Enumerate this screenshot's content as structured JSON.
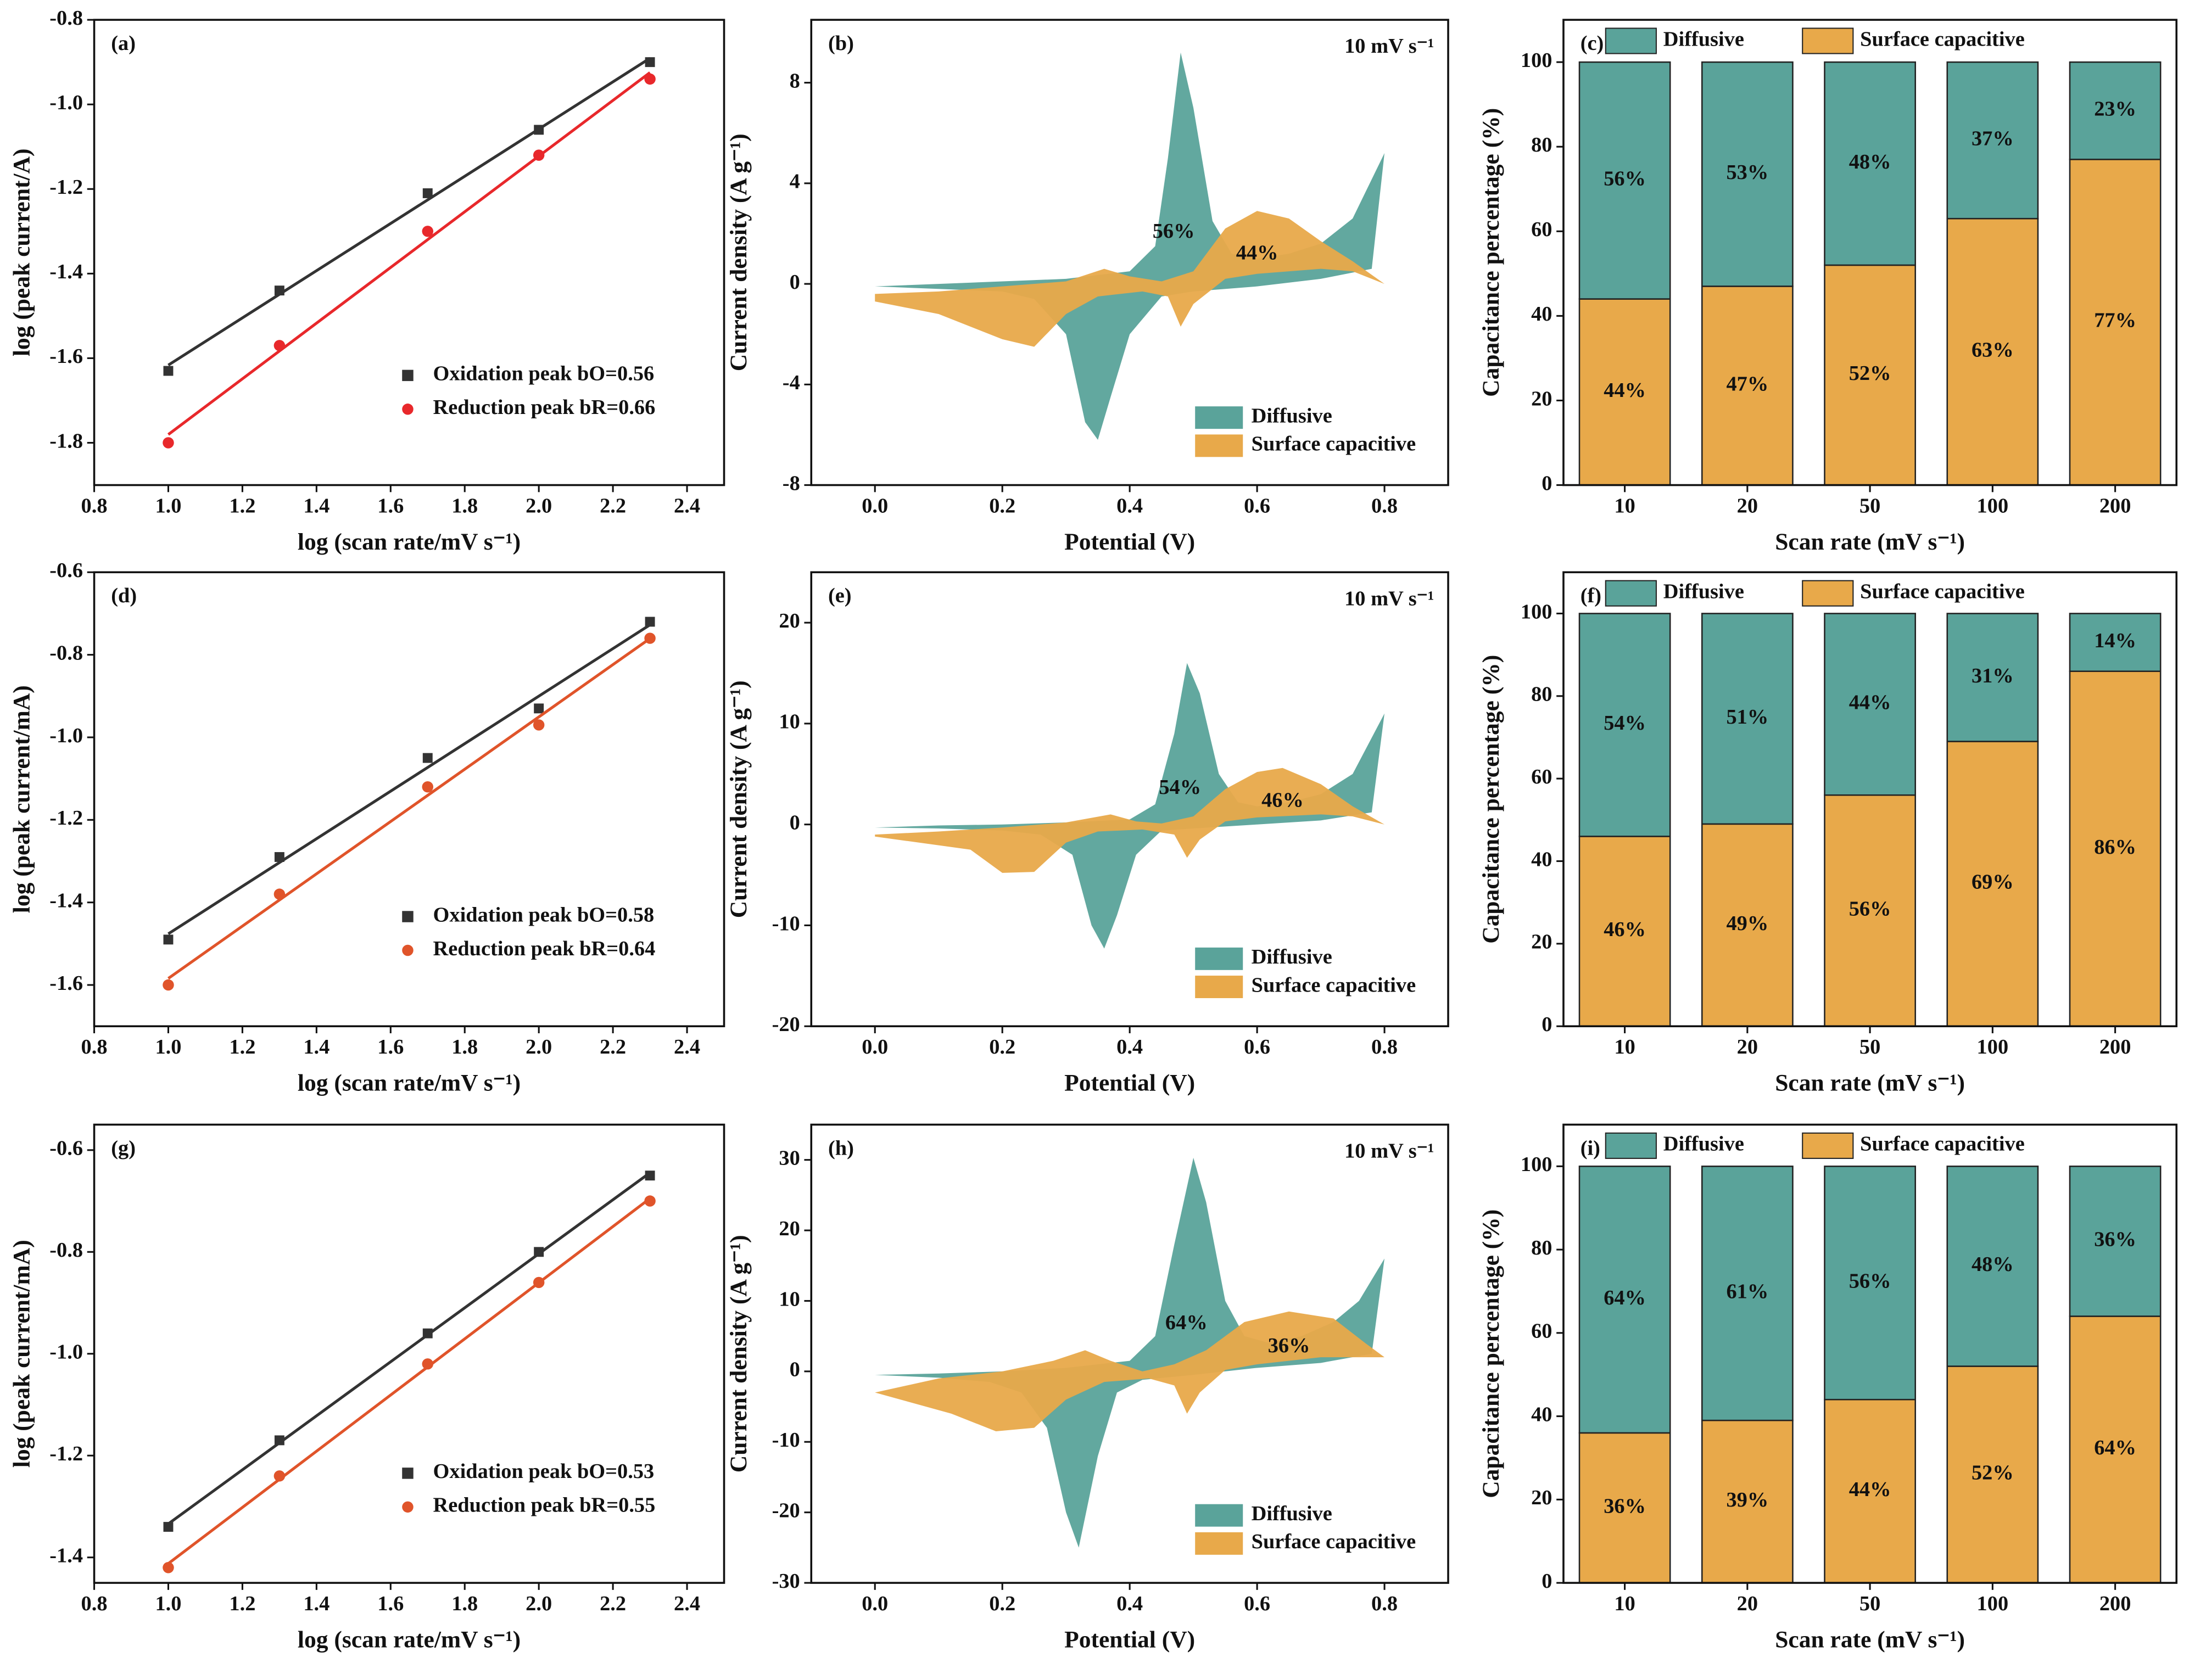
{
  "chart_data": [
    {
      "type": "scatter",
      "panel_label": "(a)",
      "xlabel": "log (scan rate/mV s⁻¹)",
      "ylabel": "log (peak current/A)",
      "x": [
        1.0,
        1.3,
        1.7,
        2.0,
        2.3
      ],
      "series": [
        {
          "name": "Oxidation peak bO=0.56",
          "color": "#333333",
          "marker": "square",
          "values": [
            -1.63,
            -1.44,
            -1.21,
            -1.06,
            -0.9
          ]
        },
        {
          "name": "Reduction peak bR=0.66",
          "color": "#e8282b",
          "marker": "circle",
          "values": [
            -1.8,
            -1.57,
            -1.3,
            -1.12,
            -0.94
          ]
        }
      ],
      "xlim": [
        0.8,
        2.5
      ],
      "xticks": [
        0.8,
        {
          "value": 1,
          "label": "1.0"
        },
        1.2,
        1.4,
        1.6,
        1.8,
        {
          "value": 2,
          "label": "2.0"
        },
        2.2,
        2.4
      ],
      "ylim": [
        -1.9,
        -0.8
      ],
      "yticks": [
        -1.8,
        -1.6,
        -1.4,
        -1.2,
        {
          "value": -1,
          "label": "-1.0"
        },
        -0.8
      ],
      "legend": "lower right"
    },
    {
      "type": "area",
      "panel_label": "(b)",
      "note": "10 mV s⁻¹",
      "xlabel": "Potential (V)",
      "ylabel": "Current density (A g⁻¹)",
      "series": [
        {
          "name": "Diffusive",
          "color": "#5aa39a",
          "area_label": "56%",
          "x": [
            0,
            0.1,
            0.2,
            0.3,
            0.4,
            0.44,
            0.46,
            0.48,
            0.5,
            0.53,
            0.56,
            0.6,
            0.65,
            0.7,
            0.75,
            0.8,
            0.78,
            0.7,
            0.6,
            0.5,
            0.45,
            0.4,
            0.37,
            0.35,
            0.33,
            0.3,
            0.25,
            0.2,
            0.1,
            0
          ],
          "values": [
            -0.1,
            0,
            0.1,
            0.2,
            0.5,
            1.5,
            5,
            9.2,
            7,
            2.5,
            1.2,
            1.0,
            1.2,
            1.6,
            2.6,
            5.2,
            0.6,
            0.2,
            -0.1,
            -0.3,
            -0.5,
            -2,
            -4.5,
            -6.2,
            -5.5,
            -2,
            -0.6,
            -0.3,
            -0.2,
            -0.1
          ]
        },
        {
          "name": "Surface capacitive",
          "color": "#e8a94a",
          "area_label": "44%",
          "x": [
            0,
            0.1,
            0.2,
            0.3,
            0.36,
            0.4,
            0.45,
            0.5,
            0.55,
            0.6,
            0.65,
            0.7,
            0.75,
            0.8,
            0.75,
            0.7,
            0.6,
            0.55,
            0.5,
            0.48,
            0.46,
            0.42,
            0.35,
            0.3,
            0.25,
            0.2,
            0.1,
            0
          ],
          "values": [
            -0.4,
            -0.3,
            -0.1,
            0.1,
            0.6,
            0.3,
            0.1,
            0.5,
            2.2,
            2.9,
            2.6,
            1.7,
            0.9,
            0,
            0.5,
            0.6,
            0.4,
            0.2,
            -0.8,
            -1.7,
            -0.5,
            -0.3,
            -0.5,
            -1.2,
            -2.5,
            -2.2,
            -1.2,
            -0.7
          ]
        }
      ],
      "xlim": [
        -0.1,
        0.9
      ],
      "xticks": [
        {
          "value": 0,
          "label": "0.0"
        },
        0.2,
        0.4,
        0.6,
        0.8
      ],
      "ylim": [
        -8,
        10.5
      ],
      "yticks": [
        -8,
        -4,
        0,
        4,
        8
      ],
      "legend": "lower right"
    },
    {
      "type": "stacked_bar",
      "panel_label": "(c)",
      "xlabel": "Scan rate (mV s⁻¹)",
      "ylabel": "Capacitance percentage (%)",
      "categories": [
        "10",
        "20",
        "50",
        "100",
        "200"
      ],
      "series": [
        {
          "name": "Diffusive",
          "color": "#5aa39a",
          "values": [
            56,
            53,
            48,
            37,
            23
          ],
          "value_labels": [
            "56%",
            "53%",
            "48%",
            "37%",
            "23%"
          ]
        },
        {
          "name": "Surface capacitive",
          "color": "#e8a94a",
          "values": [
            44,
            47,
            52,
            63,
            77
          ],
          "value_labels": [
            "44%",
            "47%",
            "52%",
            "63%",
            "77%"
          ]
        }
      ],
      "ylim": [
        0,
        110
      ],
      "yticks": [
        0,
        20,
        40,
        60,
        80,
        100
      ],
      "legend": "top"
    },
    {
      "type": "scatter",
      "panel_label": "(d)",
      "xlabel": "log (scan rate/mV s⁻¹)",
      "ylabel": "log (peak current/mA)",
      "x": [
        1.0,
        1.3,
        1.7,
        2.0,
        2.3
      ],
      "series": [
        {
          "name": "Oxidation peak bO=0.58",
          "color": "#333333",
          "marker": "square",
          "values": [
            -1.49,
            -1.29,
            -1.05,
            -0.93,
            -0.72
          ]
        },
        {
          "name": "Reduction peak bR=0.64",
          "color": "#e0542a",
          "marker": "circle",
          "values": [
            -1.6,
            -1.38,
            -1.12,
            -0.97,
            -0.76
          ]
        }
      ],
      "xlim": [
        0.8,
        2.5
      ],
      "xticks": [
        0.8,
        {
          "value": 1,
          "label": "1.0"
        },
        1.2,
        1.4,
        1.6,
        1.8,
        {
          "value": 2,
          "label": "2.0"
        },
        2.2,
        2.4
      ],
      "ylim": [
        -1.7,
        -0.6
      ],
      "yticks": [
        -1.6,
        -1.4,
        -1.2,
        {
          "value": -1,
          "label": "-1.0"
        },
        -0.8,
        -0.6
      ],
      "legend": "lower right"
    },
    {
      "type": "area",
      "panel_label": "(e)",
      "note": "10 mV s⁻¹",
      "xlabel": "Potential (V)",
      "ylabel": "Current density (A g⁻¹)",
      "series": [
        {
          "name": "Diffusive",
          "color": "#5aa39a",
          "area_label": "54%",
          "x": [
            0,
            0.1,
            0.2,
            0.3,
            0.4,
            0.44,
            0.47,
            0.49,
            0.51,
            0.54,
            0.57,
            0.6,
            0.65,
            0.7,
            0.75,
            0.8,
            0.78,
            0.7,
            0.6,
            0.5,
            0.45,
            0.41,
            0.38,
            0.36,
            0.34,
            0.31,
            0.26,
            0.2,
            0.1,
            0
          ],
          "values": [
            -0.3,
            -0.1,
            0,
            0.2,
            0.5,
            2,
            9,
            16,
            13,
            5,
            2.2,
            1.8,
            2.2,
            3,
            5,
            11,
            1.2,
            0.4,
            0,
            -0.4,
            -0.6,
            -3,
            -9,
            -12.3,
            -10,
            -3,
            -1,
            -0.6,
            -0.4,
            -0.3
          ]
        },
        {
          "name": "Surface capacitive",
          "color": "#e8a94a",
          "area_label": "46%",
          "x": [
            0,
            0.1,
            0.2,
            0.3,
            0.37,
            0.41,
            0.45,
            0.5,
            0.55,
            0.6,
            0.64,
            0.7,
            0.75,
            0.8,
            0.75,
            0.7,
            0.6,
            0.55,
            0.51,
            0.49,
            0.47,
            0.42,
            0.35,
            0.3,
            0.25,
            0.2,
            0.15,
            0
          ],
          "values": [
            -1,
            -0.7,
            -0.3,
            0.2,
            1,
            0.3,
            0.1,
            0.8,
            3.5,
            5.2,
            5.6,
            4,
            1.8,
            0,
            0.8,
            1,
            0.7,
            0.3,
            -1.5,
            -3.3,
            -1,
            -0.5,
            -0.7,
            -1.8,
            -4.7,
            -4.8,
            -2.5,
            -1.2
          ]
        }
      ],
      "xlim": [
        -0.1,
        0.9
      ],
      "xticks": [
        {
          "value": 0,
          "label": "0.0"
        },
        0.2,
        0.4,
        0.6,
        0.8
      ],
      "ylim": [
        -20,
        25
      ],
      "yticks": [
        -20,
        -10,
        0,
        10,
        20
      ],
      "legend": "lower right"
    },
    {
      "type": "stacked_bar",
      "panel_label": "(f)",
      "xlabel": "Scan rate (mV s⁻¹)",
      "ylabel": "Capacitance percentage (%)",
      "categories": [
        "10",
        "20",
        "50",
        "100",
        "200"
      ],
      "series": [
        {
          "name": "Diffusive",
          "color": "#5aa39a",
          "values": [
            54,
            51,
            44,
            31,
            14
          ],
          "value_labels": [
            "54%",
            "51%",
            "44%",
            "31%",
            "14%"
          ]
        },
        {
          "name": "Surface capacitive",
          "color": "#e8a94a",
          "values": [
            46,
            49,
            56,
            69,
            86
          ],
          "value_labels": [
            "46%",
            "49%",
            "56%",
            "69%",
            "86%"
          ]
        }
      ],
      "ylim": [
        0,
        110
      ],
      "yticks": [
        0,
        20,
        40,
        60,
        80,
        100
      ],
      "legend": "top"
    },
    {
      "type": "scatter",
      "panel_label": "(g)",
      "xlabel": "log (scan rate/mV s⁻¹)",
      "ylabel": "log (peak current/mA)",
      "x": [
        1.0,
        1.3,
        1.7,
        2.0,
        2.3
      ],
      "series": [
        {
          "name": "Oxidation peak bO=0.53",
          "color": "#333333",
          "marker": "square",
          "values": [
            -1.34,
            -1.17,
            -0.96,
            -0.8,
            -0.65
          ]
        },
        {
          "name": "Reduction peak bR=0.55",
          "color": "#e0542a",
          "marker": "circle",
          "values": [
            -1.42,
            -1.24,
            -1.02,
            -0.86,
            -0.7
          ]
        }
      ],
      "xlim": [
        0.8,
        2.5
      ],
      "xticks": [
        0.8,
        {
          "value": 1,
          "label": "1.0"
        },
        1.2,
        1.4,
        1.6,
        1.8,
        {
          "value": 2,
          "label": "2.0"
        },
        2.2,
        2.4
      ],
      "ylim": [
        -1.45,
        -0.55
      ],
      "yticks": [
        -1.4,
        -1.2,
        {
          "value": -1,
          "label": "-1.0"
        },
        -0.8,
        -0.6
      ],
      "legend": "lower right"
    },
    {
      "type": "area",
      "panel_label": "(h)",
      "note": "10 mV s⁻¹",
      "xlabel": "Potential (V)",
      "ylabel": "Current density (A g⁻¹)",
      "series": [
        {
          "name": "Diffusive",
          "color": "#5aa39a",
          "area_label": "64%",
          "x": [
            0,
            0.1,
            0.2,
            0.3,
            0.4,
            0.44,
            0.47,
            0.5,
            0.52,
            0.55,
            0.58,
            0.62,
            0.67,
            0.72,
            0.76,
            0.8,
            0.78,
            0.7,
            0.6,
            0.5,
            0.42,
            0.38,
            0.35,
            0.32,
            0.3,
            0.27,
            0.23,
            0.18,
            0.1,
            0
          ],
          "values": [
            -0.5,
            -0.3,
            0,
            0.5,
            1.5,
            5,
            18,
            30.3,
            24,
            10,
            5,
            4,
            5,
            7,
            10,
            16,
            2.5,
            1.2,
            0.5,
            -0.5,
            -1.2,
            -3,
            -12,
            -25,
            -20,
            -8,
            -3,
            -1.5,
            -0.9,
            -0.5
          ]
        },
        {
          "name": "Surface capacitive",
          "color": "#e8a94a",
          "area_label": "36%",
          "x": [
            0,
            0.1,
            0.2,
            0.28,
            0.33,
            0.37,
            0.42,
            0.47,
            0.52,
            0.58,
            0.65,
            0.72,
            0.77,
            0.8,
            0.75,
            0.7,
            0.6,
            0.55,
            0.51,
            0.49,
            0.47,
            0.43,
            0.36,
            0.3,
            0.25,
            0.19,
            0.12,
            0
          ],
          "values": [
            -3,
            -1,
            0,
            1.5,
            3,
            1.5,
            0,
            1,
            3,
            7,
            8.5,
            7.5,
            4,
            2,
            2,
            2,
            1,
            0.2,
            -3,
            -6,
            -2,
            -1,
            -1.5,
            -4,
            -8,
            -8.5,
            -6,
            -3
          ]
        }
      ],
      "xlim": [
        -0.1,
        0.9
      ],
      "xticks": [
        {
          "value": 0,
          "label": "0.0"
        },
        0.2,
        0.4,
        0.6,
        0.8
      ],
      "ylim": [
        -30,
        35
      ],
      "yticks": [
        -30,
        -20,
        -10,
        0,
        10,
        20,
        30
      ],
      "legend": "lower right"
    },
    {
      "type": "stacked_bar",
      "panel_label": "(i)",
      "xlabel": "Scan rate (mV s⁻¹)",
      "ylabel": "Capacitance percentage (%)",
      "categories": [
        "10",
        "20",
        "50",
        "100",
        "200"
      ],
      "series": [
        {
          "name": "Diffusive",
          "color": "#5aa39a",
          "values": [
            64,
            61,
            56,
            48,
            36
          ],
          "value_labels": [
            "64%",
            "61%",
            "56%",
            "48%",
            "36%"
          ]
        },
        {
          "name": "Surface capacitive",
          "color": "#e8a94a",
          "values": [
            36,
            39,
            44,
            52,
            64
          ],
          "value_labels": [
            "36%",
            "39%",
            "44%",
            "52%",
            "64%"
          ]
        }
      ],
      "ylim": [
        0,
        110
      ],
      "yticks": [
        0,
        20,
        40,
        60,
        80,
        100
      ],
      "legend": "top"
    }
  ]
}
